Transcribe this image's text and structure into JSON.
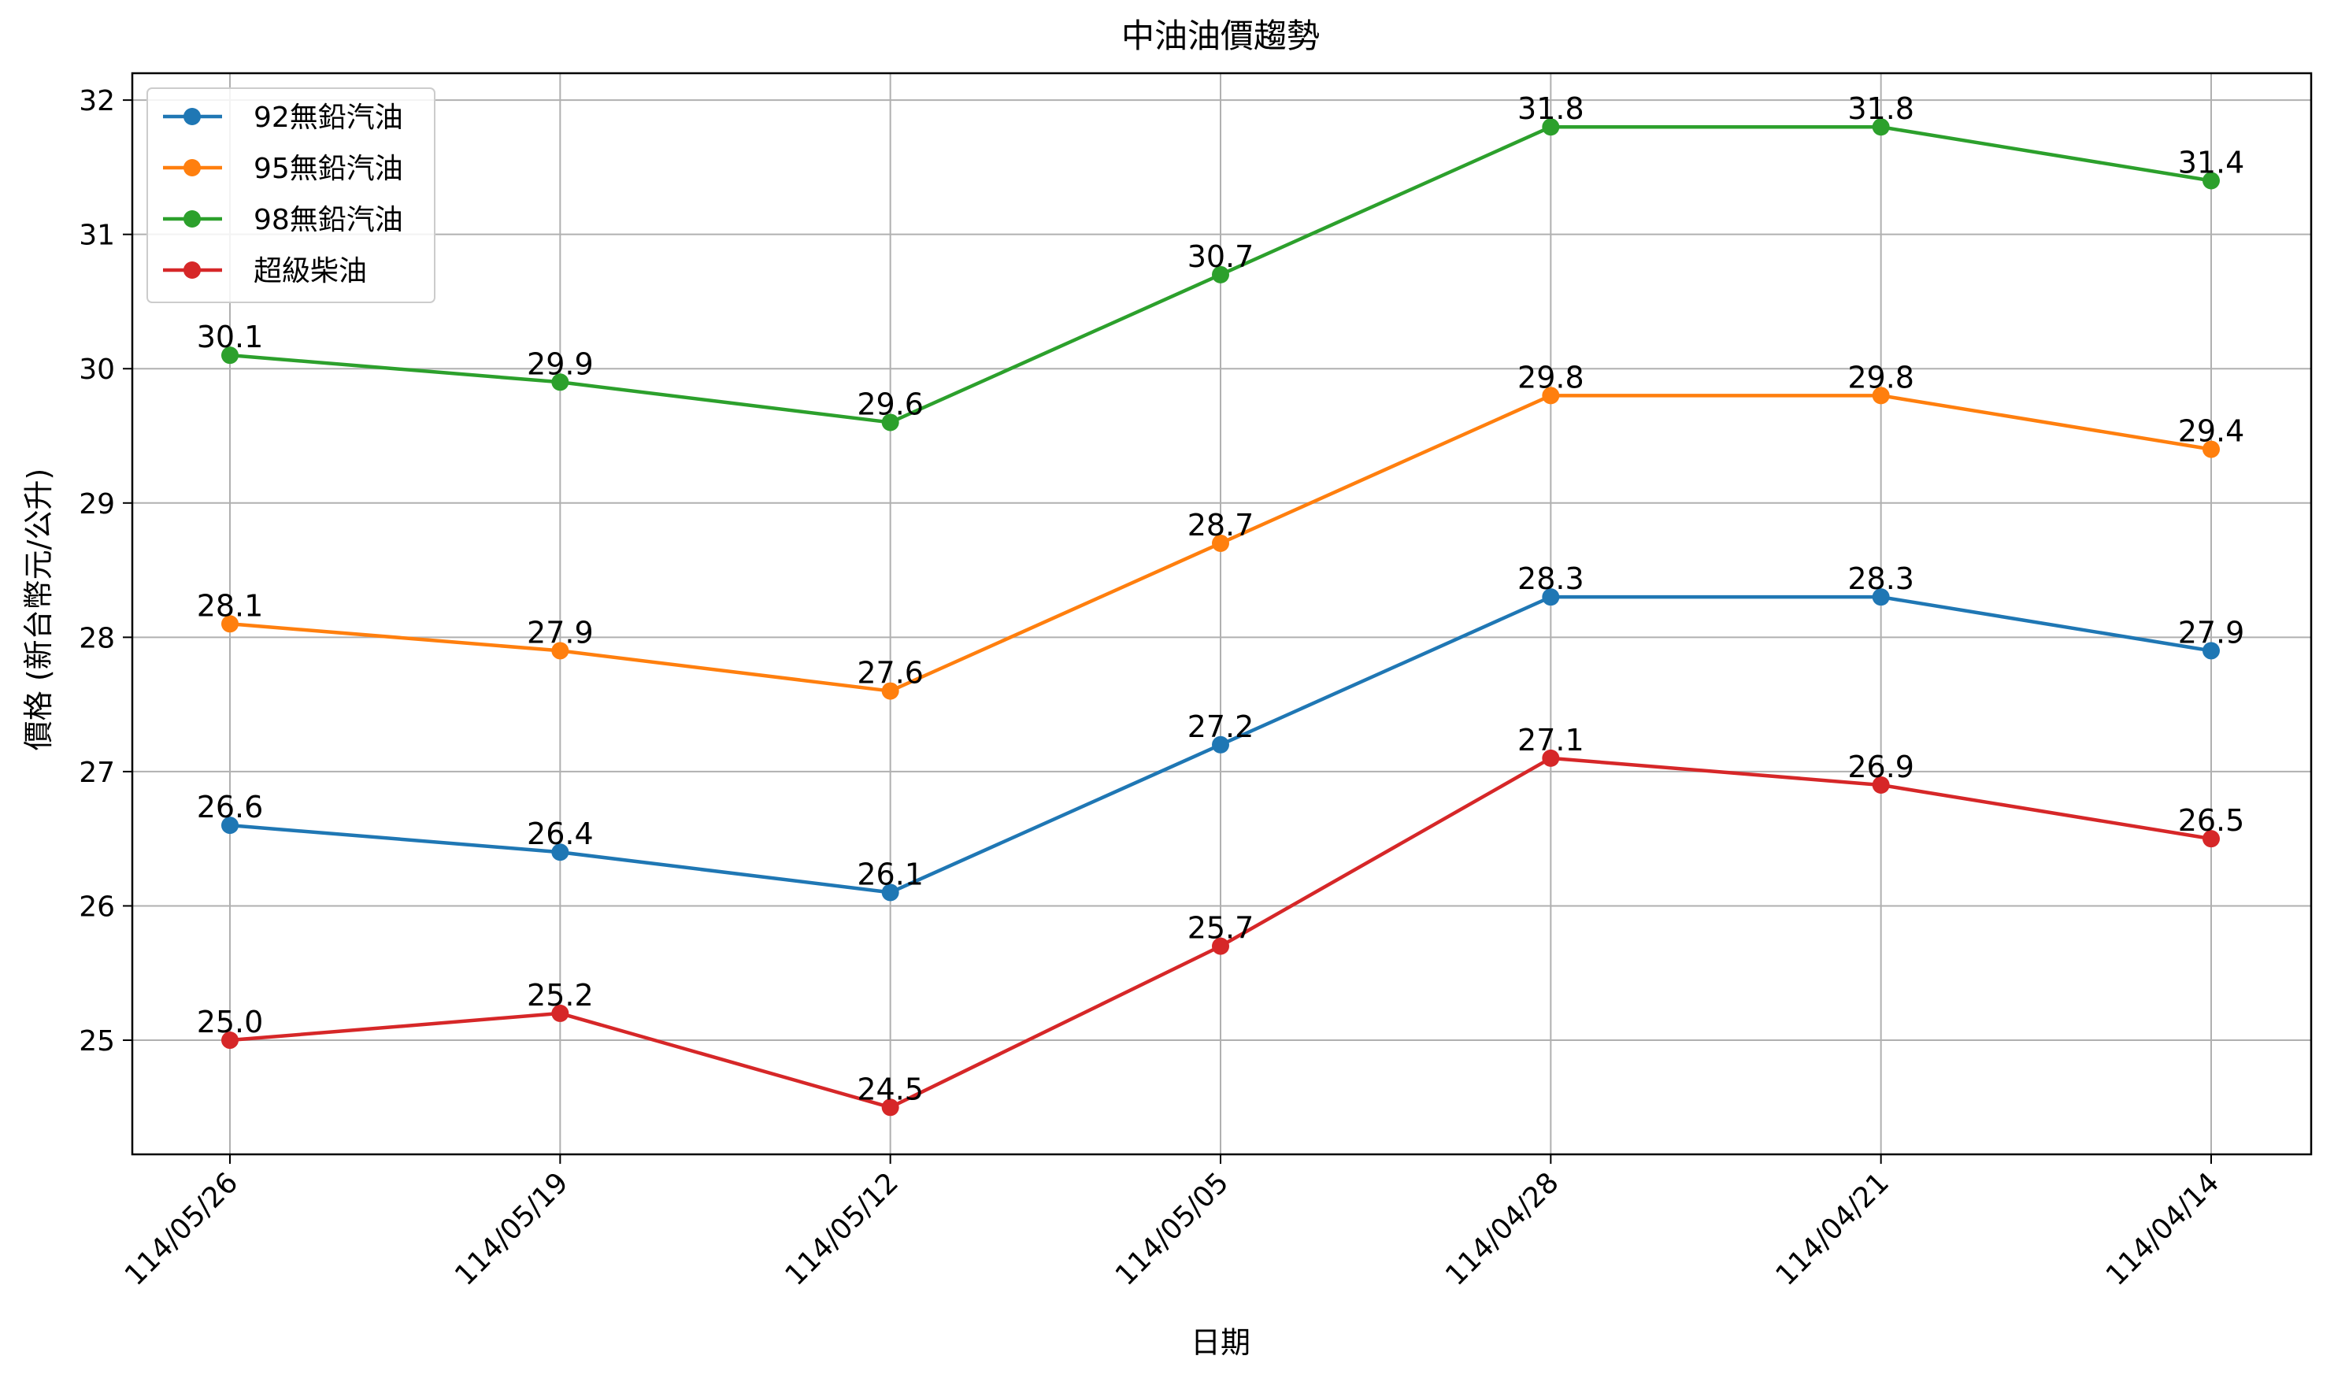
{
  "chart_data": {
    "type": "line",
    "title": "中油油價趨勢",
    "xlabel": "日期",
    "ylabel": "價格 (新台幣元/公升)",
    "categories": [
      "114/05/26",
      "114/05/19",
      "114/05/12",
      "114/05/05",
      "114/04/28",
      "114/04/21",
      "114/04/14"
    ],
    "yticks": [
      "25",
      "26",
      "27",
      "28",
      "29",
      "30",
      "31",
      "32"
    ],
    "ylim": [
      24.15,
      32.2
    ],
    "grid": true,
    "legend_position": "top-left",
    "series": [
      {
        "name": "92無鉛汽油",
        "color": "#1f77b4",
        "values": [
          26.6,
          26.4,
          26.1,
          27.2,
          28.3,
          28.3,
          27.9
        ],
        "labels": [
          "26.6",
          "26.4",
          "26.1",
          "27.2",
          "28.3",
          "28.3",
          "27.9"
        ]
      },
      {
        "name": "95無鉛汽油",
        "color": "#ff7f0e",
        "values": [
          28.1,
          27.9,
          27.6,
          28.7,
          29.8,
          29.8,
          29.4
        ],
        "labels": [
          "28.1",
          "27.9",
          "27.6",
          "28.7",
          "29.8",
          "29.8",
          "29.4"
        ]
      },
      {
        "name": "98無鉛汽油",
        "color": "#2ca02c",
        "values": [
          30.1,
          29.9,
          29.6,
          30.7,
          31.8,
          31.8,
          31.4
        ],
        "labels": [
          "30.1",
          "29.9",
          "29.6",
          "30.7",
          "31.8",
          "31.8",
          "31.4"
        ]
      },
      {
        "name": "超級柴油",
        "color": "#d62728",
        "values": [
          25.0,
          25.2,
          24.5,
          25.7,
          27.1,
          26.9,
          26.5
        ],
        "labels": [
          "25.0",
          "25.2",
          "24.5",
          "25.7",
          "27.1",
          "26.9",
          "26.5"
        ]
      }
    ]
  }
}
